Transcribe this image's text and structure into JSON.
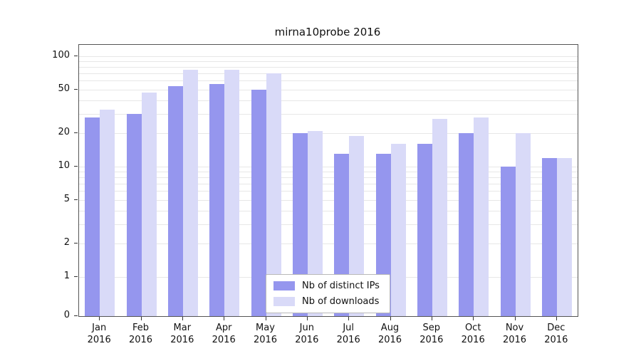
{
  "chart_data": {
    "type": "bar",
    "title": "mirna10probe 2016",
    "categories": [
      "Jan 2016",
      "Feb 2016",
      "Mar 2016",
      "Apr 2016",
      "May 2016",
      "Jun 2016",
      "Jul 2016",
      "Aug 2016",
      "Sep 2016",
      "Oct 2016",
      "Nov 2016",
      "Dec 2016"
    ],
    "series": [
      {
        "name": "Nb of distinct IPs",
        "color": "#9596ee",
        "values": [
          28,
          30,
          54,
          56,
          50,
          20,
          13,
          13,
          16,
          20,
          10,
          12
        ]
      },
      {
        "name": "Nb of downloads",
        "color": "#d9daf8",
        "values": [
          33,
          47,
          75,
          75,
          70,
          21,
          19,
          16,
          27,
          28,
          20,
          12
        ]
      }
    ],
    "yscale": "symlog",
    "yticks": [
      0,
      1,
      2,
      5,
      10,
      20,
      50,
      100
    ],
    "ylim": [
      0,
      120
    ],
    "grid": "horizontal",
    "legend_position": "lower-center"
  }
}
